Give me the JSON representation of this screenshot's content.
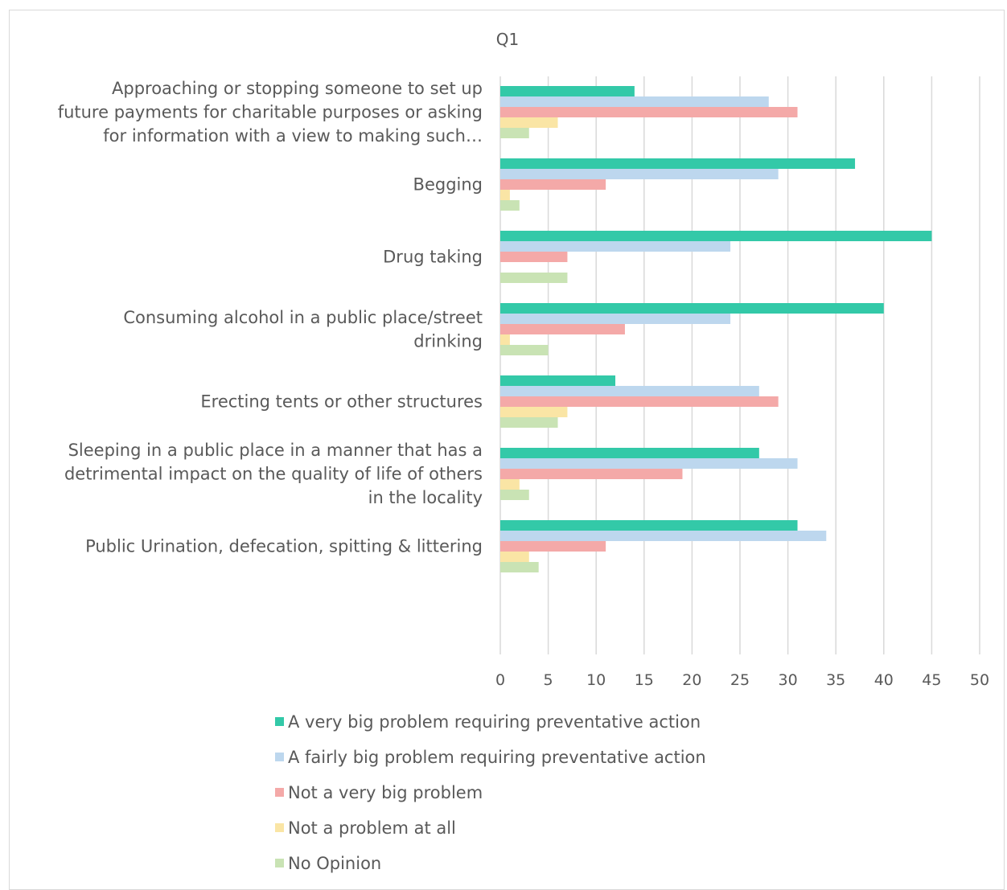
{
  "chart_data": {
    "type": "bar",
    "orientation": "horizontal",
    "title": "Q1",
    "categories": [
      [
        "Approaching or stopping someone to set up",
        "future payments for charitable purposes or asking",
        "for information with a view to making such…"
      ],
      [
        "Begging"
      ],
      [
        "Drug taking"
      ],
      [
        "Consuming alcohol in a public place/street",
        "drinking"
      ],
      [
        "Erecting tents or other structures"
      ],
      [
        "Sleeping in a public place in a manner that has a",
        "detrimental impact on the quality of life of others",
        "in the locality"
      ],
      [
        "Public Urination, defecation, spitting & littering"
      ]
    ],
    "series": [
      {
        "name": "A very big problem requiring preventative action",
        "color": "#33c9a8",
        "values": [
          14,
          37,
          45,
          40,
          12,
          27,
          31
        ]
      },
      {
        "name": "A fairly big problem requiring preventative action",
        "color": "#bdd7ee",
        "values": [
          28,
          29,
          24,
          24,
          27,
          31,
          34
        ]
      },
      {
        "name": "Not a very big problem",
        "color": "#f4a9a8",
        "values": [
          31,
          11,
          7,
          13,
          29,
          19,
          11
        ]
      },
      {
        "name": "Not a problem at all",
        "color": "#fae5a5",
        "values": [
          6,
          1,
          0,
          1,
          7,
          2,
          3
        ]
      },
      {
        "name": "No Opinion",
        "color": "#c9e3b4",
        "values": [
          3,
          2,
          7,
          5,
          6,
          3,
          4
        ]
      }
    ],
    "xlim": [
      0,
      50
    ],
    "xticks": [
      0,
      5,
      10,
      15,
      20,
      25,
      30,
      35,
      40,
      45,
      50
    ],
    "grid": true,
    "legend_position": "bottom"
  }
}
